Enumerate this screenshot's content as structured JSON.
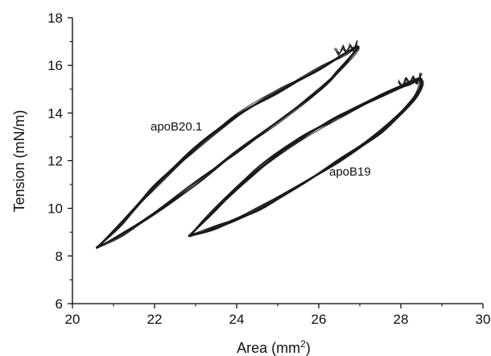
{
  "chart_data": {
    "type": "line",
    "title": "",
    "xlabel": "Area (mm",
    "xlabel_sup": "2",
    "xlabel_end": ")",
    "ylabel": "Tension (mN/m)",
    "xlim": [
      20,
      30
    ],
    "ylim": [
      6,
      18
    ],
    "x_ticks": [
      20,
      22,
      24,
      26,
      28,
      30
    ],
    "y_ticks": [
      6,
      8,
      10,
      12,
      14,
      16,
      18
    ],
    "x_tick_labels": [
      "20",
      "22",
      "24",
      "26",
      "28",
      "30"
    ],
    "y_tick_labels": [
      "6",
      "8",
      "10",
      "12",
      "14",
      "16",
      "18"
    ],
    "grid": false,
    "line_color": "#1a1a1a",
    "series": [
      {
        "name": "apoB20.1",
        "upper_branch": [
          [
            20.6,
            8.35
          ],
          [
            21.2,
            9.35
          ],
          [
            22.0,
            10.9
          ],
          [
            23.0,
            12.5
          ],
          [
            24.0,
            13.85
          ],
          [
            25.0,
            14.9
          ],
          [
            26.0,
            15.85
          ],
          [
            26.6,
            16.45
          ],
          [
            26.95,
            16.75
          ]
        ],
        "lower_branch": [
          [
            26.95,
            16.75
          ],
          [
            26.5,
            15.8
          ],
          [
            26.0,
            14.95
          ],
          [
            25.0,
            13.6
          ],
          [
            24.0,
            12.35
          ],
          [
            23.0,
            11.05
          ],
          [
            22.0,
            9.8
          ],
          [
            21.2,
            8.9
          ],
          [
            20.6,
            8.35
          ]
        ],
        "loops": 14
      },
      {
        "name": "apoB19",
        "upper_branch": [
          [
            22.85,
            8.85
          ],
          [
            23.5,
            10.0
          ],
          [
            24.5,
            11.6
          ],
          [
            25.5,
            12.85
          ],
          [
            26.5,
            13.85
          ],
          [
            27.5,
            14.7
          ],
          [
            28.2,
            15.25
          ],
          [
            28.5,
            15.4
          ]
        ],
        "lower_branch": [
          [
            28.5,
            15.4
          ],
          [
            28.3,
            14.6
          ],
          [
            27.5,
            13.25
          ],
          [
            26.5,
            12.0
          ],
          [
            25.5,
            10.9
          ],
          [
            24.5,
            9.95
          ],
          [
            23.5,
            9.2
          ],
          [
            22.85,
            8.85
          ]
        ],
        "loops": 18
      }
    ]
  }
}
